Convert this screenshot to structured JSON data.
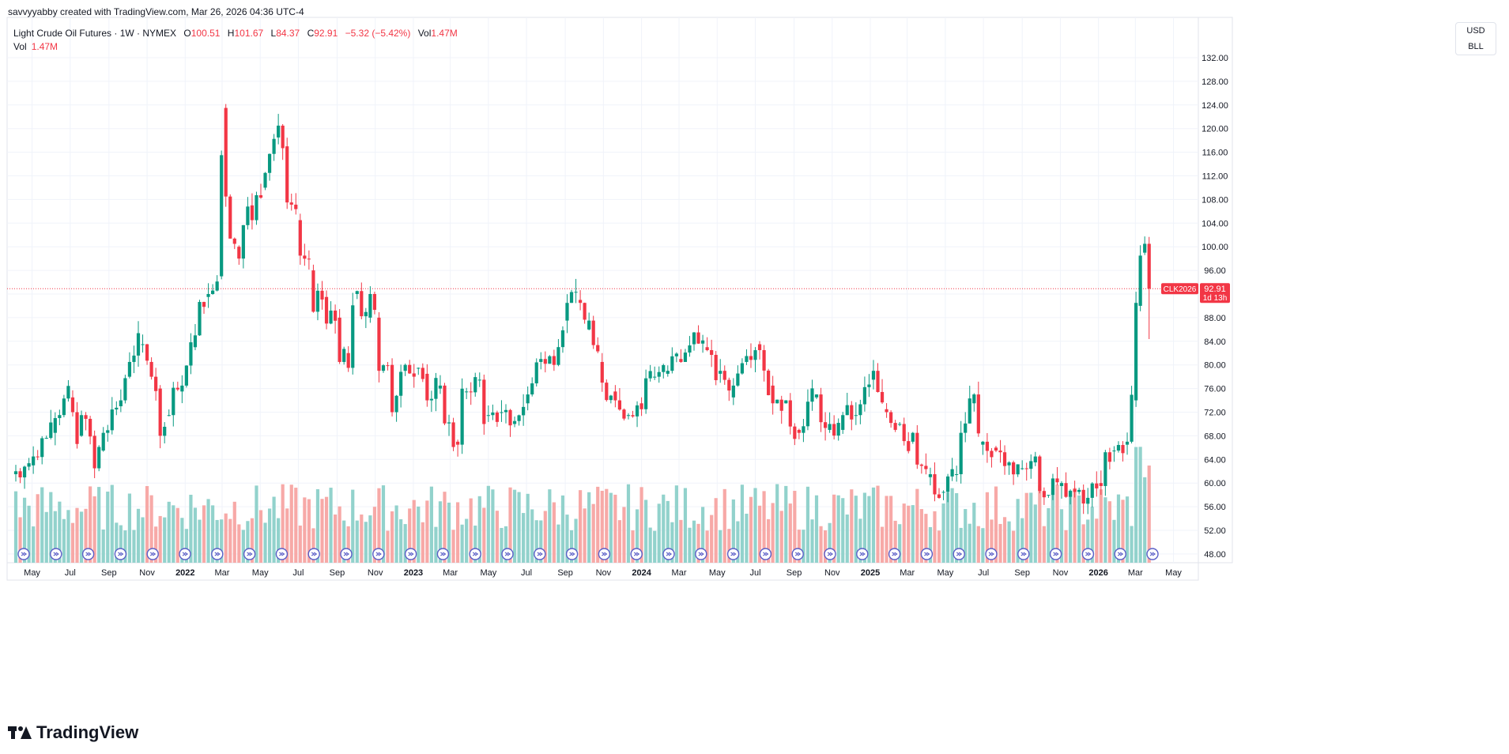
{
  "attribution": "savvyyabby created with TradingView.com, Mar 26, 2026 04:36 UTC-4",
  "legend": {
    "symbol": "Light Crude Oil Futures · 1W · NYMEX",
    "o_label": "O",
    "o_value": "100.51",
    "h_label": "H",
    "h_value": "101.67",
    "l_label": "L",
    "l_value": "84.37",
    "c_label": "C",
    "c_value": "92.91",
    "change": "−5.32 (−5.42%)",
    "vol_label": "Vol",
    "vol_value": "1.47M",
    "vol2_label": "Vol",
    "vol2_value": "1.47M"
  },
  "unit_box": {
    "currency": "USD",
    "unit": "BLL"
  },
  "price_axis": {
    "ticks": [
      "132.00",
      "128.00",
      "124.00",
      "120.00",
      "116.00",
      "112.00",
      "108.00",
      "104.00",
      "100.00",
      "96.00",
      "92.00",
      "88.00",
      "84.00",
      "80.00",
      "76.00",
      "72.00",
      "68.00",
      "64.00",
      "60.00",
      "56.00",
      "52.00",
      "48.00"
    ]
  },
  "time_axis": {
    "labels": [
      "May",
      "Jul",
      "Sep",
      "Nov",
      "2022",
      "Mar",
      "May",
      "Jul",
      "Sep",
      "Nov",
      "2023",
      "Mar",
      "May",
      "Jul",
      "Sep",
      "Nov",
      "2024",
      "Mar",
      "May",
      "Jul",
      "Sep",
      "Nov",
      "2025",
      "Mar",
      "May",
      "Jul",
      "Sep",
      "Nov",
      "2026",
      "Mar",
      "May"
    ],
    "bold": [
      "2022",
      "2023",
      "2024",
      "2025",
      "2026"
    ]
  },
  "last_price": {
    "symbol": "CLK2026",
    "price": "92.91",
    "countdown": "1d 13h"
  },
  "brand": "TradingView",
  "colors": {
    "up": "#089981",
    "down": "#f23645",
    "vol_up": "#92d2cc",
    "vol_down": "#f7a9a7",
    "grid": "#f0f3fa",
    "event": "#2962ff"
  },
  "chart_data": {
    "type": "candlestick",
    "title": "Light Crude Oil Futures · 1W · NYMEX",
    "ylim": [
      48,
      134
    ],
    "x_range": [
      "2021-04-05",
      "2026-05-18"
    ],
    "y_scale": "linear",
    "grid": true,
    "last_value": 92.91,
    "points": [
      [
        "2021-04-05",
        61.5,
        62.0
      ],
      [
        "2021-05-03",
        63.0,
        64.5
      ],
      [
        "2021-06-07",
        68.5,
        71.0
      ],
      [
        "2021-07-05",
        74.5,
        72.0
      ],
      [
        "2021-07-19",
        68.0,
        71.5
      ],
      [
        "2021-08-09",
        68.0,
        62.5
      ],
      [
        "2021-08-23",
        65.5,
        68.5
      ],
      [
        "2021-09-20",
        73.0,
        74.0
      ],
      [
        "2021-10-04",
        78.0,
        80.5
      ],
      [
        "2021-10-25",
        83.5,
        83.5
      ],
      [
        "2021-11-08",
        80.5,
        78.0
      ],
      [
        "2021-11-22",
        76.0,
        68.0
      ],
      [
        "2021-12-06",
        71.5,
        71.5
      ],
      [
        "2021-12-27",
        75.5,
        76.5
      ],
      [
        "2022-01-17",
        83.0,
        85.0
      ],
      [
        "2022-02-07",
        91.5,
        92.0
      ],
      [
        "2022-02-28",
        95.0,
        115.5
      ],
      [
        "2022-03-07",
        123.5,
        108.5
      ],
      [
        "2022-03-28",
        100.0,
        98.0
      ],
      [
        "2022-04-18",
        107.0,
        104.5
      ],
      [
        "2022-05-09",
        110.0,
        112.5
      ],
      [
        "2022-05-30",
        118.5,
        120.5
      ],
      [
        "2022-06-13",
        117.0,
        107.5
      ],
      [
        "2022-07-04",
        104.5,
        98.5
      ],
      [
        "2022-07-25",
        96.0,
        89.0
      ],
      [
        "2022-08-15",
        91.5,
        87.0
      ],
      [
        "2022-09-05",
        88.0,
        80.5
      ],
      [
        "2022-09-19",
        82.0,
        79.5
      ],
      [
        "2022-10-03",
        92.0,
        92.5
      ],
      [
        "2022-10-24",
        88.0,
        92.0
      ],
      [
        "2022-11-07",
        88.0,
        79.0
      ],
      [
        "2022-11-28",
        80.0,
        72.0
      ],
      [
        "2022-12-19",
        79.0,
        80.0
      ],
      [
        "2023-01-09",
        79.5,
        79.5
      ],
      [
        "2023-01-23",
        78.5,
        74.0
      ],
      [
        "2023-02-13",
        76.0,
        76.5
      ],
      [
        "2023-03-13",
        67.0,
        66.5
      ],
      [
        "2023-03-27",
        75.5,
        75.5
      ],
      [
        "2023-04-17",
        77.5,
        77.5
      ],
      [
        "2023-05-01",
        71.5,
        71.5
      ],
      [
        "2023-05-22",
        72.0,
        72.0
      ],
      [
        "2023-06-12",
        70.0,
        70.5
      ],
      [
        "2023-07-03",
        73.5,
        75.0
      ],
      [
        "2023-07-24",
        80.5,
        81.0
      ],
      [
        "2023-08-14",
        81.5,
        80.0
      ],
      [
        "2023-09-04",
        87.5,
        90.5
      ],
      [
        "2023-09-25",
        91.0,
        90.5
      ],
      [
        "2023-10-09",
        86.0,
        87.5
      ],
      [
        "2023-10-30",
        80.5,
        77.0
      ],
      [
        "2023-11-20",
        75.5,
        74.0
      ],
      [
        "2023-12-11",
        71.5,
        71.5
      ],
      [
        "2024-01-01",
        73.5,
        72.5
      ],
      [
        "2024-01-22",
        78.0,
        78.0
      ],
      [
        "2024-02-12",
        78.5,
        79.0
      ],
      [
        "2024-03-04",
        81.0,
        80.5
      ],
      [
        "2024-03-25",
        83.5,
        85.5
      ],
      [
        "2024-04-15",
        83.0,
        82.5
      ],
      [
        "2024-05-06",
        78.5,
        79.0
      ],
      [
        "2024-05-27",
        74.5,
        76.5
      ],
      [
        "2024-06-17",
        80.5,
        81.5
      ],
      [
        "2024-07-08",
        83.5,
        82.5
      ],
      [
        "2024-07-29",
        76.5,
        73.5
      ],
      [
        "2024-08-19",
        73.5,
        74.0
      ],
      [
        "2024-09-09",
        69.0,
        68.5
      ],
      [
        "2024-10-07",
        74.5,
        75.0
      ],
      [
        "2024-10-28",
        69.0,
        70.0
      ],
      [
        "2024-11-18",
        69.0,
        71.5
      ],
      [
        "2024-12-09",
        71.5,
        71.5
      ],
      [
        "2025-01-06",
        77.5,
        79.0
      ],
      [
        "2025-01-27",
        72.5,
        72.0
      ],
      [
        "2025-02-17",
        70.0,
        70.0
      ],
      [
        "2025-03-10",
        67.0,
        68.5
      ],
      [
        "2025-04-07",
        61.0,
        61.5
      ],
      [
        "2025-04-28",
        58.5,
        58.5
      ],
      [
        "2025-05-19",
        61.5,
        61.5
      ],
      [
        "2025-06-16",
        73.5,
        75.0
      ],
      [
        "2025-06-30",
        66.5,
        67.0
      ],
      [
        "2025-07-21",
        66.0,
        65.5
      ],
      [
        "2025-08-11",
        63.0,
        63.5
      ],
      [
        "2025-09-01",
        62.5,
        62.5
      ],
      [
        "2025-09-22",
        63.5,
        64.5
      ],
      [
        "2025-10-13",
        58.0,
        58.0
      ],
      [
        "2025-11-03",
        59.5,
        60.0
      ],
      [
        "2025-11-24",
        59.0,
        58.5
      ],
      [
        "2025-12-15",
        56.5,
        57.5
      ],
      [
        "2026-01-05",
        60.0,
        59.5
      ],
      [
        "2026-01-26",
        65.5,
        65.5
      ],
      [
        "2026-02-16",
        66.5,
        67.0
      ],
      [
        "2026-03-02",
        74.0,
        90.5
      ],
      [
        "2026-03-09",
        90.0,
        98.5
      ],
      [
        "2026-03-16",
        99.0,
        100.5
      ],
      [
        "2026-03-23",
        100.5,
        92.9
      ]
    ]
  }
}
